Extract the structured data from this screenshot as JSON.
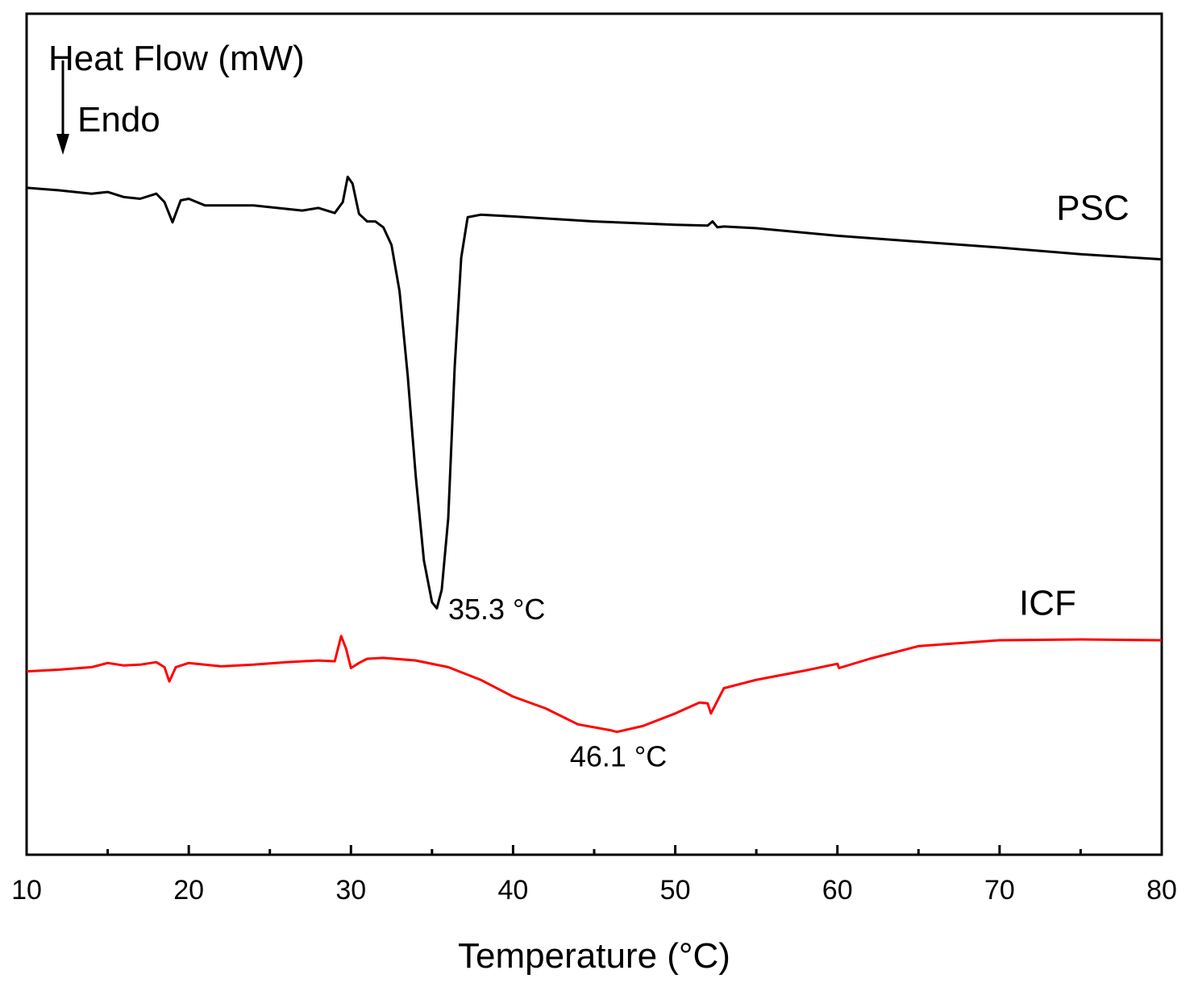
{
  "chart_data": {
    "type": "line",
    "title": "",
    "xlabel": "Temperature (°C)",
    "ylabel": "Heat Flow (mW)",
    "endo_label": "Endo",
    "xlim": [
      10,
      80
    ],
    "ylim": [
      0,
      100
    ],
    "xticks": [
      10,
      20,
      30,
      40,
      50,
      60,
      70,
      80
    ],
    "y_ticks_shown": false,
    "grid": false,
    "series": [
      {
        "name": "PSC",
        "color": "#000000",
        "x": [
          10,
          12,
          14,
          15,
          16,
          17,
          18,
          18.5,
          19,
          19.5,
          20,
          21,
          22,
          24,
          26,
          27,
          28,
          29,
          29.5,
          29.8,
          30.1,
          30.5,
          31,
          31.5,
          32,
          32.5,
          33,
          33.5,
          34,
          34.5,
          35,
          35.3,
          35.6,
          36,
          36.4,
          36.8,
          37.2,
          38,
          40,
          45,
          50,
          52,
          52.3,
          52.6,
          53,
          55,
          60,
          65,
          70,
          75,
          80
        ],
        "y": [
          79.3,
          79.0,
          78.6,
          78.8,
          78.2,
          78.0,
          78.6,
          77.6,
          75.2,
          77.8,
          78.0,
          77.2,
          77.2,
          77.2,
          76.8,
          76.6,
          76.9,
          76.3,
          77.6,
          80.6,
          79.8,
          76.2,
          75.3,
          75.3,
          74.6,
          72.5,
          67.0,
          57.0,
          45.0,
          35.0,
          30.0,
          29.3,
          31.5,
          40.0,
          58.0,
          71.0,
          75.8,
          76.1,
          75.9,
          75.3,
          74.9,
          74.8,
          75.3,
          74.6,
          74.7,
          74.5,
          73.6,
          72.9,
          72.2,
          71.4,
          70.8
        ]
      },
      {
        "name": "ICF",
        "color": "#ff0000",
        "x": [
          10,
          12,
          14,
          15,
          16,
          17,
          18,
          18.5,
          18.8,
          19.2,
          20,
          22,
          24,
          26,
          28,
          29,
          29.4,
          29.7,
          30.0,
          30.5,
          31,
          32,
          34,
          36,
          38,
          40,
          42,
          44,
          46,
          46.4,
          48,
          50,
          51.5,
          52,
          52.2,
          53,
          55,
          58,
          60,
          60.1,
          62,
          65,
          70,
          75,
          80
        ],
        "y": [
          21.8,
          22.0,
          22.3,
          22.8,
          22.5,
          22.6,
          22.9,
          22.3,
          20.6,
          22.3,
          22.8,
          22.4,
          22.6,
          22.9,
          23.1,
          23.0,
          26.0,
          24.5,
          22.2,
          22.8,
          23.3,
          23.4,
          23.1,
          22.3,
          20.8,
          18.8,
          17.4,
          15.5,
          14.8,
          14.6,
          15.3,
          16.8,
          18.1,
          18.0,
          16.8,
          19.8,
          20.8,
          21.9,
          22.7,
          22.2,
          23.3,
          24.8,
          25.5,
          25.6,
          25.5
        ]
      }
    ],
    "series_labels": [
      {
        "text": "PSC",
        "x": 73.5,
        "y": 75.5
      },
      {
        "text": "ICF",
        "x": 71.2,
        "y": 28.5
      }
    ],
    "annotations": [
      {
        "text": "35.3 °C",
        "x": 36.0,
        "y": 28.0
      },
      {
        "text": "46.1 °C",
        "x": 43.5,
        "y": 10.5
      }
    ]
  }
}
